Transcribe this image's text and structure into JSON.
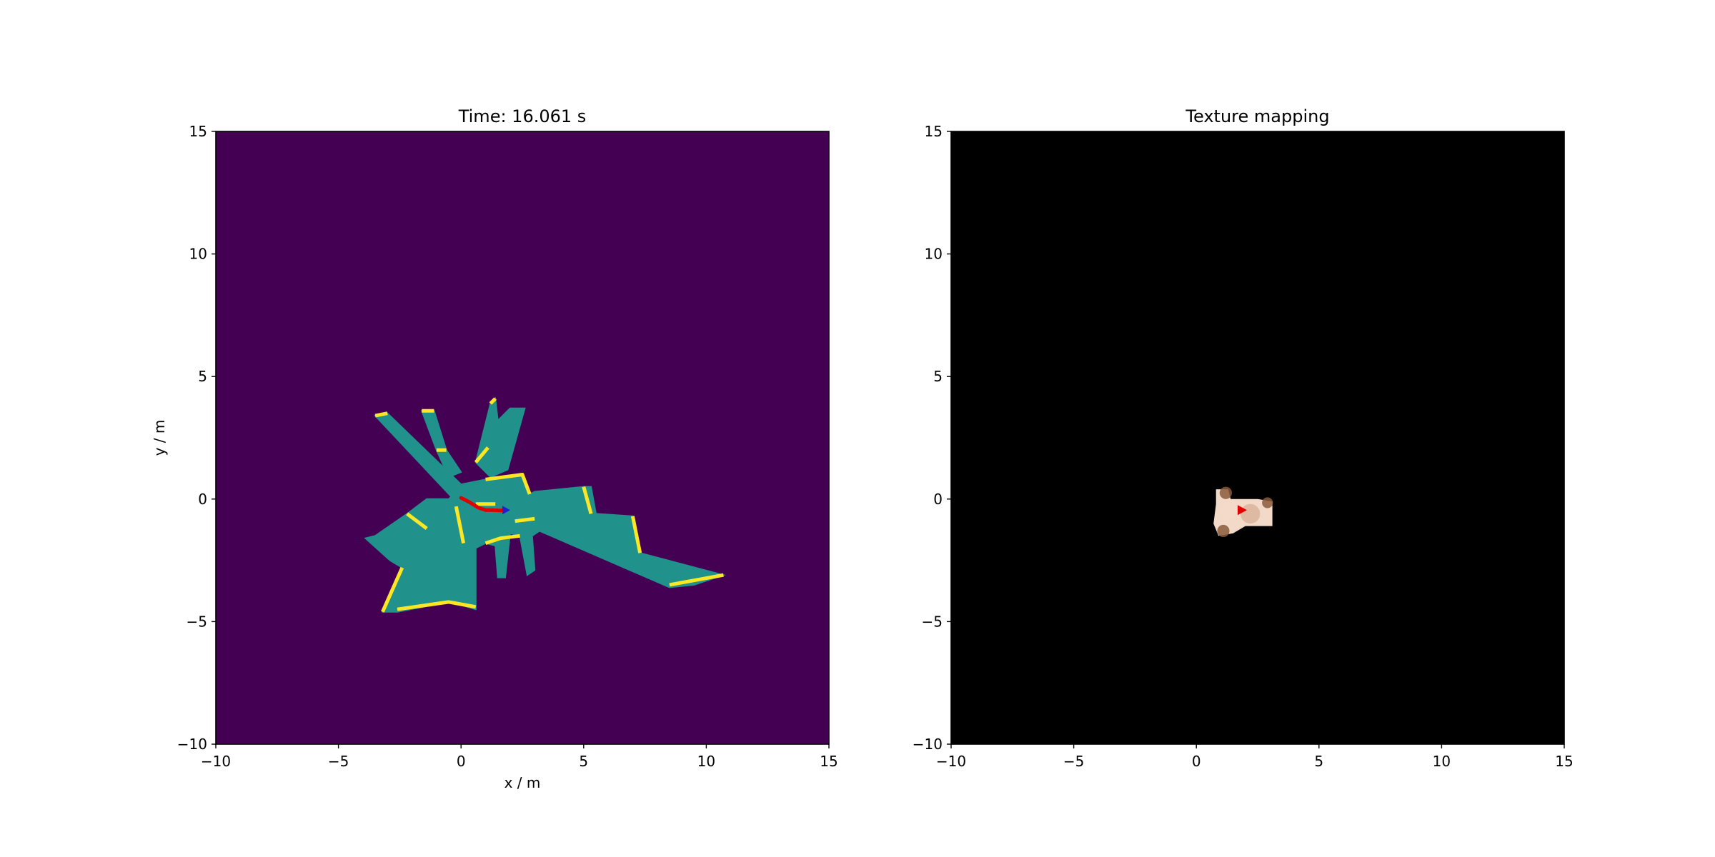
{
  "chart_data": [
    {
      "type": "heatmap",
      "title": "Time: 16.061 s",
      "xlabel": "x / m",
      "ylabel": "y / m",
      "xlim": [
        -10,
        15
      ],
      "ylim": [
        -10,
        15
      ],
      "xticks": [
        -10,
        -5,
        0,
        5,
        10,
        15
      ],
      "yticks": [
        -10,
        -5,
        0,
        5,
        10,
        15
      ],
      "grid": false,
      "colors": {
        "unknown": "#440154",
        "free": "#21918c",
        "occupied": "#fde725",
        "trajectory": "#e00000",
        "robot": "#1f1fcc"
      },
      "free_regions": [
        [
          [
            -3.5,
            3.4
          ],
          [
            -3.0,
            3.5
          ],
          [
            0.0,
            0.6
          ],
          [
            1.0,
            0.8
          ],
          [
            2.5,
            1.0
          ],
          [
            2.8,
            0.2
          ],
          [
            3.0,
            0.3
          ],
          [
            5.0,
            0.5
          ],
          [
            5.3,
            0.5
          ],
          [
            5.5,
            -0.6
          ],
          [
            7.0,
            -0.7
          ],
          [
            7.3,
            -2.2
          ],
          [
            10.7,
            -3.1
          ],
          [
            9.5,
            -3.5
          ],
          [
            8.5,
            -3.6
          ],
          [
            3.2,
            -1.3
          ],
          [
            2.9,
            -1.5
          ],
          [
            3.0,
            -2.9
          ],
          [
            2.7,
            -3.1
          ],
          [
            2.4,
            -1.5
          ],
          [
            2.0,
            -1.4
          ],
          [
            1.8,
            -3.2
          ],
          [
            1.5,
            -3.2
          ],
          [
            1.4,
            -1.9
          ],
          [
            1.0,
            -1.8
          ],
          [
            0.6,
            -2.0
          ],
          [
            0.6,
            -4.5
          ],
          [
            -0.1,
            -4.3
          ],
          [
            -0.5,
            -4.2
          ],
          [
            -2.6,
            -4.6
          ],
          [
            -3.2,
            -4.6
          ],
          [
            -2.4,
            -2.8
          ],
          [
            -2.9,
            -2.5
          ],
          [
            -3.9,
            -1.6
          ],
          [
            -3.5,
            -1.5
          ],
          [
            -2.2,
            -0.6
          ],
          [
            -1.4,
            0.0
          ],
          [
            -0.5,
            0.0
          ],
          [
            -0.4,
            0.1
          ]
        ],
        [
          [
            -1.6,
            3.6
          ],
          [
            -1.1,
            3.6
          ],
          [
            -0.6,
            2.0
          ],
          [
            0.0,
            1.1
          ],
          [
            -0.5,
            0.9
          ],
          [
            -1.0,
            2.0
          ]
        ],
        [
          [
            0.6,
            1.5
          ],
          [
            1.2,
            3.9
          ],
          [
            1.4,
            4.1
          ],
          [
            1.5,
            3.2
          ],
          [
            2.0,
            3.7
          ],
          [
            2.6,
            3.7
          ],
          [
            1.9,
            1.2
          ],
          [
            1.2,
            0.9
          ]
        ]
      ],
      "occupied_segments": [
        [
          [
            -3.5,
            3.4
          ],
          [
            -3.0,
            3.5
          ]
        ],
        [
          [
            -1.6,
            3.6
          ],
          [
            -1.1,
            3.6
          ]
        ],
        [
          [
            1.2,
            3.9
          ],
          [
            1.4,
            4.1
          ]
        ],
        [
          [
            -1.0,
            2.0
          ],
          [
            -0.6,
            2.0
          ]
        ],
        [
          [
            0.6,
            1.5
          ],
          [
            1.1,
            2.1
          ]
        ],
        [
          [
            1.0,
            0.8
          ],
          [
            2.5,
            1.0
          ],
          [
            2.8,
            0.2
          ]
        ],
        [
          [
            5.0,
            0.5
          ],
          [
            5.3,
            -0.6
          ]
        ],
        [
          [
            7.0,
            -0.7
          ],
          [
            7.3,
            -2.2
          ]
        ],
        [
          [
            8.5,
            -3.5
          ],
          [
            10.7,
            -3.1
          ]
        ],
        [
          [
            -2.6,
            -4.5
          ],
          [
            -0.5,
            -4.2
          ],
          [
            0.6,
            -4.4
          ]
        ],
        [
          [
            -3.2,
            -4.6
          ],
          [
            -2.4,
            -2.8
          ]
        ],
        [
          [
            -2.2,
            -0.6
          ],
          [
            -1.4,
            -1.2
          ]
        ],
        [
          [
            -0.2,
            -0.3
          ],
          [
            0.1,
            -1.8
          ]
        ],
        [
          [
            1.0,
            -1.8
          ],
          [
            1.6,
            -1.6
          ],
          [
            2.4,
            -1.5
          ]
        ],
        [
          [
            2.2,
            -0.9
          ],
          [
            3.0,
            -0.8
          ]
        ],
        [
          [
            0.6,
            -0.2
          ],
          [
            1.4,
            -0.2
          ]
        ]
      ],
      "trajectory": {
        "x": [
          0.0,
          0.3,
          0.7,
          1.0,
          1.3,
          1.6,
          1.8
        ],
        "y": [
          0.05,
          -0.1,
          -0.35,
          -0.45,
          -0.45,
          -0.47,
          -0.45
        ]
      },
      "robot_pose": {
        "x": 1.8,
        "y": -0.45
      }
    },
    {
      "type": "heatmap",
      "title": "Texture mapping",
      "xlim": [
        -10,
        15
      ],
      "ylim": [
        -10,
        15
      ],
      "xticks": [
        -10,
        -5,
        0,
        5,
        10,
        15
      ],
      "yticks": [
        -10,
        -5,
        0,
        5,
        10,
        15
      ],
      "grid": false,
      "colors": {
        "background": "#000000",
        "texture_light": "#f3d9c8",
        "texture_mid": "#d8b49a",
        "texture_dark": "#8a5a3c",
        "robot": "#e00000"
      },
      "texture_patch": [
        [
          0.8,
          0.4
        ],
        [
          1.3,
          0.4
        ],
        [
          1.4,
          0.0
        ],
        [
          2.5,
          0.0
        ],
        [
          3.1,
          -0.1
        ],
        [
          3.1,
          -1.1
        ],
        [
          2.0,
          -1.1
        ],
        [
          1.5,
          -1.4
        ],
        [
          0.9,
          -1.5
        ],
        [
          0.7,
          -1.0
        ],
        [
          0.8,
          -0.2
        ]
      ],
      "texture_spots": [
        {
          "x": 1.2,
          "y": 0.25,
          "r": 0.25,
          "shade": "texture_dark"
        },
        {
          "x": 2.9,
          "y": -0.15,
          "r": 0.22,
          "shade": "texture_dark"
        },
        {
          "x": 1.1,
          "y": -1.3,
          "r": 0.25,
          "shade": "texture_dark"
        },
        {
          "x": 2.2,
          "y": -0.6,
          "r": 0.4,
          "shade": "texture_mid"
        },
        {
          "x": 1.3,
          "y": -0.5,
          "r": 0.35,
          "shade": "texture_light"
        }
      ],
      "robot_pose": {
        "x": 1.8,
        "y": -0.45
      }
    }
  ]
}
